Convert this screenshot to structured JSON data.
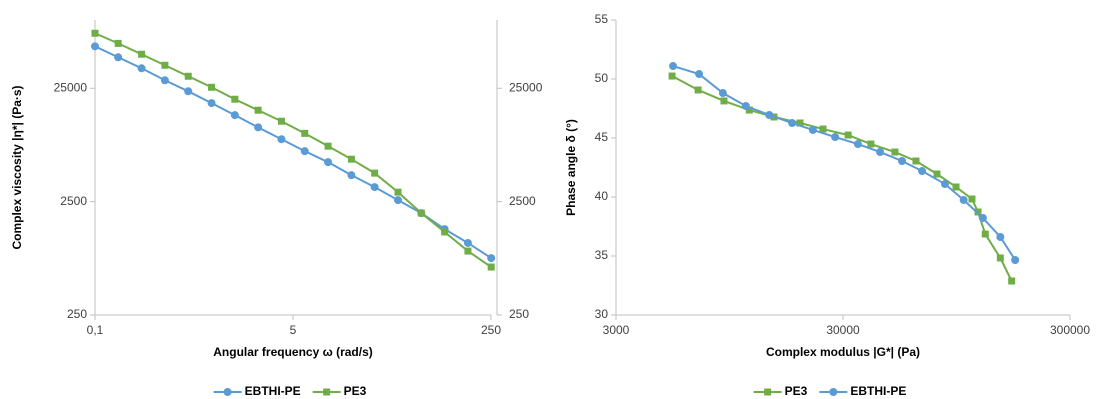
{
  "chart_data": [
    {
      "type": "line",
      "xlabel": "Angular frequency ω (rad/s)",
      "ylabel": "Complex viscosity |η*| (Pa·s)",
      "xlog": true,
      "ylog": true,
      "xlim": [
        0.1,
        250
      ],
      "xticks": [
        {
          "value": 0.1,
          "label": "0,1"
        },
        5,
        250
      ],
      "ylim": [
        250,
        100000
      ],
      "yticks": [
        250,
        2500,
        25000
      ],
      "y2lim": [
        250,
        100000
      ],
      "y2ticks": [
        250,
        2500,
        25000
      ],
      "legend": "bottom",
      "series": [
        {
          "name": "EBTHI-PE",
          "color": "#5b9bd5",
          "marker": "circle",
          "x": [
            0.1,
            0.158,
            0.251,
            0.398,
            0.631,
            1,
            1.585,
            2.51,
            3.98,
            6.31,
            10,
            15.85,
            25.1,
            39.8,
            63.1,
            100,
            158.5,
            251
          ],
          "values": [
            58600,
            46900,
            37500,
            29400,
            23500,
            18500,
            14500,
            11300,
            8880,
            6970,
            5570,
            4280,
            3360,
            2580,
            1980,
            1430,
            1080,
            794
          ]
        },
        {
          "name": "PE3",
          "color": "#70ad47",
          "marker": "square",
          "x": [
            0.1,
            0.158,
            0.251,
            0.398,
            0.631,
            1,
            1.585,
            2.51,
            3.98,
            6.31,
            10,
            15.85,
            25.1,
            39.8,
            63.1,
            100,
            158.5,
            251
          ],
          "values": [
            76400,
            62200,
            49900,
            39900,
            31900,
            25500,
            20000,
            16000,
            12800,
            10000,
            7710,
            5920,
            4460,
            3030,
            1980,
            1350,
            916,
            662
          ]
        }
      ]
    },
    {
      "type": "line",
      "xlabel": "Complex modulus |G*| (Pa)",
      "ylabel": "Phase angle δ (°)",
      "xlog": true,
      "ylog": false,
      "xlim": [
        3000,
        300000
      ],
      "xticks": [
        3000,
        30000,
        300000
      ],
      "ylim": [
        30,
        55
      ],
      "yticks": [
        30,
        35,
        40,
        45,
        50,
        55
      ],
      "legend": "bottom",
      "series": [
        {
          "name": "PE3",
          "color": "#70ad47",
          "marker": "square",
          "x": [
            5300,
            6900,
            8970,
            11600,
            14900,
            19400,
            24500,
            31600,
            39800,
            50800,
            62900,
            77800,
            94400,
            111000,
            118000,
            127000,
            148000,
            166000
          ],
          "values": [
            50.25,
            49.07,
            48.14,
            47.37,
            46.78,
            46.27,
            45.76,
            45.25,
            44.49,
            43.81,
            43.05,
            41.95,
            40.85,
            39.83,
            38.73,
            36.86,
            34.83,
            32.88
          ]
        },
        {
          "name": "EBTHI-PE",
          "color": "#5b9bd5",
          "marker": "circle",
          "x": [
            5350,
            6970,
            8870,
            11200,
            14200,
            17900,
            22100,
            27700,
            34900,
            43700,
            54600,
            66900,
            84400,
            102000,
            124000,
            148000,
            172000
          ],
          "values": [
            51.1,
            50.42,
            48.81,
            47.71,
            46.95,
            46.27,
            45.68,
            45.08,
            44.49,
            43.81,
            43.05,
            42.2,
            41.1,
            39.75,
            38.22,
            36.61,
            34.66
          ]
        }
      ]
    }
  ]
}
